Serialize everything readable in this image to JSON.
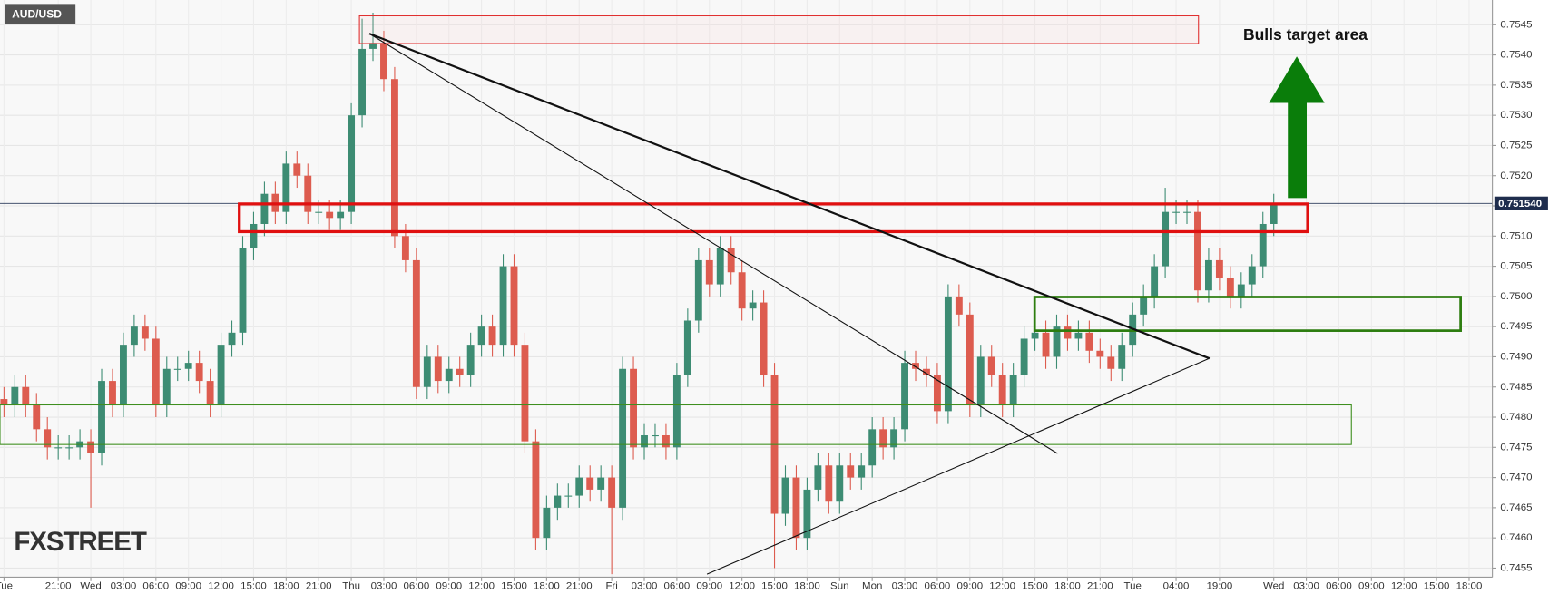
{
  "chart_data": {
    "type": "candlestick",
    "title": "AUD/USD",
    "annotation": "Bulls target area",
    "watermark": "FXSTREET",
    "categories": [
      "Tue",
      null,
      null,
      null,
      null,
      "21:00",
      null,
      null,
      "Wed",
      null,
      null,
      "03:00",
      null,
      null,
      "06:00",
      null,
      null,
      "09:00",
      null,
      null,
      "12:00",
      null,
      null,
      "15:00",
      null,
      null,
      "18:00",
      null,
      null,
      "21:00",
      null,
      null,
      "Thu",
      null,
      null,
      "03:00",
      null,
      null,
      "06:00",
      null,
      null,
      "09:00",
      null,
      null,
      "12:00",
      null,
      null,
      "15:00",
      null,
      null,
      "18:00",
      null,
      null,
      "21:00",
      null,
      null,
      "Fri",
      null,
      null,
      "03:00",
      null,
      null,
      "06:00",
      null,
      null,
      "09:00",
      null,
      null,
      "12:00",
      null,
      null,
      "15:00",
      null,
      null,
      "18:00",
      null,
      null,
      "Sun",
      null,
      null,
      "Mon",
      null,
      null,
      "03:00",
      null,
      null,
      "06:00",
      null,
      null,
      "09:00",
      null,
      null,
      "12:00",
      null,
      null,
      "15:00",
      null,
      null,
      "18:00",
      null,
      null,
      "21:00",
      null,
      null,
      "Tue",
      null,
      null,
      null,
      "04:00",
      null,
      null,
      null,
      "19:00",
      null,
      null,
      null,
      null,
      "Wed",
      null,
      null,
      "03:00",
      null,
      null,
      "06:00",
      null,
      null,
      "09:00",
      null,
      null,
      "12:00",
      null,
      null,
      "15:00",
      null,
      null,
      "18:00",
      null
    ],
    "open": [
      0.7483,
      0.7482,
      0.7485,
      0.7482,
      0.7478,
      0.7475,
      0.7475,
      0.7475,
      0.7476,
      0.7474,
      0.7486,
      0.7482,
      0.7492,
      0.7495,
      0.7493,
      0.7482,
      0.7488,
      0.7488,
      0.7489,
      0.7486,
      0.7482,
      0.7492,
      0.7494,
      0.7508,
      0.7512,
      0.7517,
      0.7514,
      0.7522,
      0.752,
      0.7514,
      0.7514,
      0.7513,
      0.7514,
      0.753,
      0.7541,
      0.7542,
      0.7536,
      0.751,
      0.7506,
      0.7485,
      0.749,
      0.7486,
      0.7488,
      0.7487,
      0.7492,
      0.7495,
      0.7492,
      0.7505,
      0.7492,
      0.7476,
      0.746,
      0.7465,
      0.7467,
      0.7467,
      0.747,
      0.7468,
      0.747,
      0.7465,
      0.7488,
      0.7475,
      0.7477,
      0.7477,
      0.7475,
      0.7487,
      0.7496,
      0.7506,
      0.7502,
      0.7508,
      0.7504,
      0.7498,
      0.7499,
      0.7487,
      0.7464,
      0.747,
      0.746,
      0.7468,
      0.7472,
      0.7466,
      0.7472,
      0.747,
      0.7472,
      0.7478,
      0.7475,
      0.7478,
      0.7489,
      0.7488,
      0.7487,
      0.7481,
      0.75,
      0.7497,
      0.7482,
      0.749,
      0.7487,
      0.7482,
      0.7487,
      0.7493,
      0.7494,
      0.749,
      0.7495,
      0.7493,
      0.7494,
      0.7491,
      0.749,
      0.7488,
      0.7492,
      0.7497,
      0.75,
      0.7505,
      0.7514,
      0.7514,
      0.7514,
      0.7501,
      0.7506,
      0.7503,
      0.75,
      0.7502,
      0.7505,
      0.7512,
      null,
      null,
      null,
      null,
      null,
      null,
      null,
      null,
      null,
      null,
      null,
      null,
      null,
      null,
      null,
      null,
      null,
      null,
      null
    ],
    "high": [
      0.7485,
      0.7487,
      0.7487,
      0.7484,
      0.748,
      0.7477,
      0.7477,
      0.7478,
      0.7478,
      0.7488,
      0.7488,
      0.7494,
      0.7497,
      0.7497,
      0.7495,
      0.749,
      0.749,
      0.7491,
      0.7491,
      0.7488,
      0.7494,
      0.7496,
      0.751,
      0.7514,
      0.7519,
      0.7519,
      0.7524,
      0.7524,
      0.7522,
      0.7516,
      0.7516,
      0.7516,
      0.7532,
      0.7546,
      0.7547,
      0.7544,
      0.7538,
      0.7512,
      0.7508,
      0.7492,
      0.7492,
      0.749,
      0.749,
      0.7494,
      0.7497,
      0.7497,
      0.7507,
      0.7507,
      0.7494,
      0.7478,
      0.7467,
      0.7469,
      0.7469,
      0.7472,
      0.7472,
      0.7472,
      0.7472,
      0.749,
      0.749,
      0.7479,
      0.7479,
      0.7479,
      0.7489,
      0.7498,
      0.7508,
      0.7508,
      0.751,
      0.751,
      0.7506,
      0.7501,
      0.7501,
      0.7489,
      0.7472,
      0.7472,
      0.747,
      0.7474,
      0.7474,
      0.7474,
      0.7474,
      0.7474,
      0.748,
      0.748,
      0.748,
      0.7491,
      0.7491,
      0.749,
      0.7489,
      0.7502,
      0.7502,
      0.7499,
      0.7492,
      0.7492,
      0.7489,
      0.7489,
      0.7495,
      0.7496,
      0.7496,
      0.7497,
      0.7497,
      0.7496,
      0.7496,
      0.7493,
      0.7492,
      0.7494,
      0.7499,
      0.7502,
      0.7507,
      0.7518,
      0.7516,
      0.7516,
      0.7516,
      0.7508,
      0.7508,
      0.7505,
      0.7504,
      0.7507,
      0.7514,
      0.7517,
      null,
      null,
      null,
      null,
      null,
      null,
      null,
      null,
      null,
      null,
      null,
      null,
      null,
      null,
      null,
      null,
      null,
      null,
      null
    ],
    "low": [
      0.748,
      0.748,
      0.748,
      0.7476,
      0.7473,
      0.7473,
      0.7473,
      0.7473,
      0.7465,
      0.7472,
      0.748,
      0.748,
      0.749,
      0.7491,
      0.748,
      0.748,
      0.7486,
      0.7486,
      0.7484,
      0.748,
      0.748,
      0.749,
      0.7492,
      0.7506,
      0.751,
      0.7512,
      0.7512,
      0.7518,
      0.7512,
      0.7512,
      0.7511,
      0.7511,
      0.7512,
      0.7528,
      0.7539,
      0.7534,
      0.7508,
      0.7504,
      0.7483,
      0.7483,
      0.7484,
      0.7484,
      0.7485,
      0.7485,
      0.749,
      0.749,
      0.749,
      0.749,
      0.7474,
      0.7458,
      0.7458,
      0.7463,
      0.7465,
      0.7465,
      0.7466,
      0.7466,
      0.7454,
      0.7463,
      0.7473,
      0.7473,
      0.7475,
      0.7473,
      0.7473,
      0.7485,
      0.7494,
      0.75,
      0.75,
      0.7502,
      0.7496,
      0.7496,
      0.7485,
      0.7455,
      0.7462,
      0.7458,
      0.7458,
      0.7466,
      0.7464,
      0.7464,
      0.7468,
      0.7468,
      0.747,
      0.7473,
      0.7473,
      0.7476,
      0.7486,
      0.7485,
      0.7479,
      0.7479,
      0.7495,
      0.748,
      0.748,
      0.7485,
      0.748,
      0.748,
      0.7485,
      0.7491,
      0.7488,
      0.7488,
      0.7491,
      0.7491,
      0.7489,
      0.7488,
      0.7486,
      0.7486,
      0.749,
      0.7495,
      0.7498,
      0.7503,
      0.7512,
      0.7512,
      0.7499,
      0.7499,
      0.7501,
      0.7498,
      0.7498,
      0.75,
      0.7503,
      0.751,
      null,
      null,
      null,
      null,
      null,
      null,
      null,
      null,
      null,
      null,
      null,
      null,
      null,
      null,
      null,
      null,
      null,
      null,
      null
    ],
    "close": [
      0.7482,
      0.7485,
      0.7482,
      0.7478,
      0.7475,
      0.7475,
      0.7475,
      0.7476,
      0.7474,
      0.7486,
      0.7482,
      0.7492,
      0.7495,
      0.7493,
      0.7482,
      0.7488,
      0.7488,
      0.7489,
      0.7486,
      0.7482,
      0.7492,
      0.7494,
      0.7508,
      0.7512,
      0.7517,
      0.7514,
      0.7522,
      0.752,
      0.7514,
      0.7514,
      0.7513,
      0.7514,
      0.753,
      0.7541,
      0.7542,
      0.7536,
      0.751,
      0.7506,
      0.7485,
      0.749,
      0.7486,
      0.7488,
      0.7487,
      0.7492,
      0.7495,
      0.7492,
      0.7505,
      0.7492,
      0.7476,
      0.746,
      0.7465,
      0.7467,
      0.7467,
      0.747,
      0.7468,
      0.747,
      0.7465,
      0.7488,
      0.7475,
      0.7477,
      0.7477,
      0.7475,
      0.7487,
      0.7496,
      0.7506,
      0.7502,
      0.7508,
      0.7504,
      0.7498,
      0.7499,
      0.7487,
      0.7464,
      0.747,
      0.746,
      0.7468,
      0.7472,
      0.7466,
      0.7472,
      0.747,
      0.7472,
      0.7478,
      0.7475,
      0.7478,
      0.7489,
      0.7488,
      0.7487,
      0.7481,
      0.75,
      0.7497,
      0.7482,
      0.749,
      0.7487,
      0.7482,
      0.7487,
      0.7493,
      0.7494,
      0.749,
      0.7495,
      0.7493,
      0.7494,
      0.7491,
      0.749,
      0.7488,
      0.7492,
      0.7497,
      0.75,
      0.7505,
      0.7514,
      0.7514,
      0.7514,
      0.7501,
      0.7506,
      0.7503,
      0.75,
      0.7502,
      0.7505,
      0.7512,
      0.75154,
      null,
      null,
      null,
      null,
      null,
      null,
      null,
      null,
      null,
      null,
      null,
      null,
      null,
      null,
      null,
      null,
      null,
      null,
      null
    ],
    "up_color": "#3d8c73",
    "down_color": "#dd5c4f",
    "last_price": {
      "value": 0.75154,
      "label": "0.751540"
    },
    "ylim": [
      0.74535,
      0.75491
    ],
    "yticks": [
      0.7455,
      {
        "value": 0.746,
        "label": "0.7460"
      },
      0.7465,
      {
        "value": 0.747,
        "label": "0.7470"
      },
      0.7475,
      {
        "value": 0.748,
        "label": "0.7480"
      },
      0.7485,
      {
        "value": 0.749,
        "label": "0.7490"
      },
      0.7495,
      {
        "value": 0.75,
        "label": "0.7500"
      },
      0.7505,
      {
        "value": 0.751,
        "label": "0.7510"
      },
      0.7515,
      {
        "value": 0.752,
        "label": "0.7520"
      },
      0.7525,
      {
        "value": 0.753,
        "label": "0.7530"
      },
      0.7535,
      {
        "value": 0.754,
        "label": "0.7540"
      },
      0.7545
    ],
    "grid": true
  }
}
